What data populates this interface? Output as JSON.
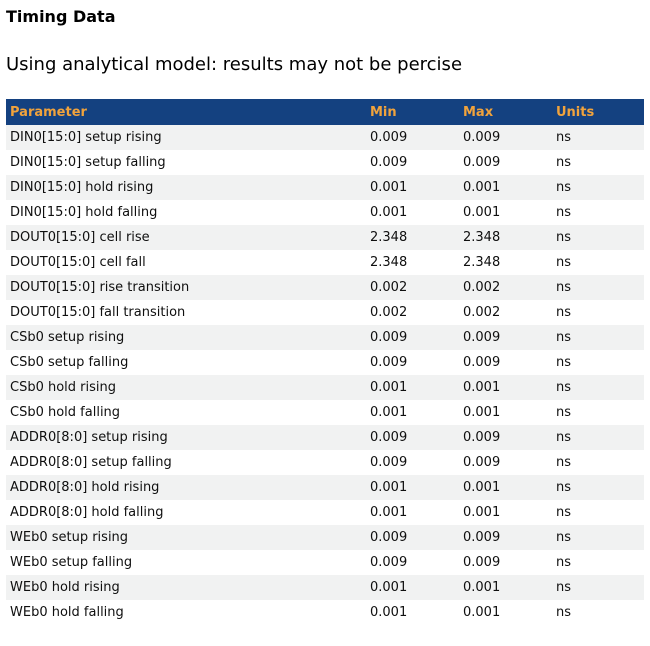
{
  "page": {
    "title": "Timing Data",
    "subtitle": "Using analytical model: results may not be percise"
  },
  "table": {
    "columns": [
      "Parameter",
      "Min",
      "Max",
      "Units"
    ],
    "rows": [
      {
        "parameter": "DIN0[15:0] setup rising",
        "min": "0.009",
        "max": "0.009",
        "units": "ns"
      },
      {
        "parameter": "DIN0[15:0] setup falling",
        "min": "0.009",
        "max": "0.009",
        "units": "ns"
      },
      {
        "parameter": "DIN0[15:0] hold rising",
        "min": "0.001",
        "max": "0.001",
        "units": "ns"
      },
      {
        "parameter": "DIN0[15:0] hold falling",
        "min": "0.001",
        "max": "0.001",
        "units": "ns"
      },
      {
        "parameter": "DOUT0[15:0] cell rise",
        "min": "2.348",
        "max": "2.348",
        "units": "ns"
      },
      {
        "parameter": "DOUT0[15:0] cell fall",
        "min": "2.348",
        "max": "2.348",
        "units": "ns"
      },
      {
        "parameter": "DOUT0[15:0] rise transition",
        "min": "0.002",
        "max": "0.002",
        "units": "ns"
      },
      {
        "parameter": "DOUT0[15:0] fall transition",
        "min": "0.002",
        "max": "0.002",
        "units": "ns"
      },
      {
        "parameter": "CSb0 setup rising",
        "min": "0.009",
        "max": "0.009",
        "units": "ns"
      },
      {
        "parameter": "CSb0 setup falling",
        "min": "0.009",
        "max": "0.009",
        "units": "ns"
      },
      {
        "parameter": "CSb0 hold rising",
        "min": "0.001",
        "max": "0.001",
        "units": "ns"
      },
      {
        "parameter": "CSb0 hold falling",
        "min": "0.001",
        "max": "0.001",
        "units": "ns"
      },
      {
        "parameter": "ADDR0[8:0] setup rising",
        "min": "0.009",
        "max": "0.009",
        "units": "ns"
      },
      {
        "parameter": "ADDR0[8:0] setup falling",
        "min": "0.009",
        "max": "0.009",
        "units": "ns"
      },
      {
        "parameter": "ADDR0[8:0] hold rising",
        "min": "0.001",
        "max": "0.001",
        "units": "ns"
      },
      {
        "parameter": "ADDR0[8:0] hold falling",
        "min": "0.001",
        "max": "0.001",
        "units": "ns"
      },
      {
        "parameter": "WEb0 setup rising",
        "min": "0.009",
        "max": "0.009",
        "units": "ns"
      },
      {
        "parameter": "WEb0 setup falling",
        "min": "0.009",
        "max": "0.009",
        "units": "ns"
      },
      {
        "parameter": "WEb0 hold rising",
        "min": "0.001",
        "max": "0.001",
        "units": "ns"
      },
      {
        "parameter": "WEb0 hold falling",
        "min": "0.001",
        "max": "0.001",
        "units": "ns"
      }
    ]
  },
  "colors": {
    "header_bg": "#144180",
    "header_text": "#f1a33c",
    "stripe": "#f1f2f2",
    "row_text": "#0f0f0f"
  }
}
